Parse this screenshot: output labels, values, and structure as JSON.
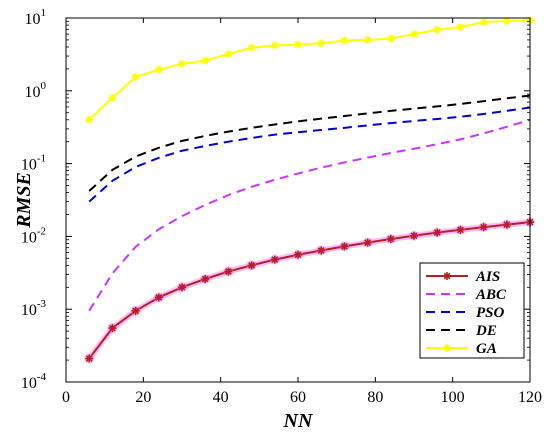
{
  "chart_data": {
    "type": "line",
    "xlabel": "NN",
    "ylabel": "RMSE",
    "xlim": [
      0,
      120
    ],
    "ylim": [
      0.0001,
      10
    ],
    "y_scale": "log",
    "grid": false,
    "legend_position": "bottom-right",
    "x_ticks": [
      "0",
      "20",
      "40",
      "60",
      "80",
      "100",
      "120"
    ],
    "y_ticks": [
      {
        "value": 0.0001,
        "base": "10",
        "exp": "-4"
      },
      {
        "value": 0.001,
        "base": "10",
        "exp": "-3"
      },
      {
        "value": 0.01,
        "base": "10",
        "exp": "-2"
      },
      {
        "value": 0.1,
        "base": "10",
        "exp": "-1"
      },
      {
        "value": 1,
        "base": "10",
        "exp": "0"
      },
      {
        "value": 10,
        "base": "10",
        "exp": "1"
      }
    ],
    "series": [
      {
        "name": "AIS",
        "color": "#b22222",
        "halo_color": "#ff66ff",
        "dash": "solid",
        "marker": "star",
        "x": [
          6,
          12,
          18,
          24,
          30,
          36,
          42,
          48,
          54,
          60,
          66,
          72,
          78,
          84,
          90,
          96,
          102,
          108,
          114,
          120
        ],
        "y": [
          0.00021,
          0.00055,
          0.00095,
          0.00145,
          0.002,
          0.0026,
          0.0033,
          0.004,
          0.0048,
          0.0056,
          0.0064,
          0.0073,
          0.0082,
          0.0092,
          0.0102,
          0.0113,
          0.0123,
          0.0134,
          0.0145,
          0.0157
        ]
      },
      {
        "name": "ABC",
        "color": "#cc33ff",
        "dash": "dashed",
        "marker": "none",
        "x": [
          6,
          12,
          18,
          24,
          30,
          36,
          42,
          48,
          54,
          60,
          66,
          72,
          78,
          84,
          90,
          96,
          102,
          108,
          114,
          120
        ],
        "y": [
          0.00095,
          0.0031,
          0.0072,
          0.0125,
          0.019,
          0.027,
          0.037,
          0.048,
          0.06,
          0.073,
          0.088,
          0.104,
          0.121,
          0.14,
          0.16,
          0.185,
          0.215,
          0.26,
          0.32,
          0.4
        ]
      },
      {
        "name": "PSO",
        "color": "#0000dd",
        "dash": "dashed",
        "marker": "none",
        "x": [
          6,
          12,
          18,
          24,
          30,
          36,
          42,
          48,
          54,
          60,
          66,
          72,
          78,
          84,
          90,
          96,
          102,
          108,
          114,
          120
        ],
        "y": [
          0.03,
          0.058,
          0.09,
          0.12,
          0.15,
          0.175,
          0.2,
          0.225,
          0.25,
          0.27,
          0.29,
          0.31,
          0.335,
          0.36,
          0.385,
          0.41,
          0.44,
          0.48,
          0.53,
          0.59
        ]
      },
      {
        "name": "DE",
        "color": "#000000",
        "dash": "dashed",
        "marker": "none",
        "x": [
          6,
          12,
          18,
          24,
          30,
          36,
          42,
          48,
          54,
          60,
          66,
          72,
          78,
          84,
          90,
          96,
          102,
          108,
          114,
          120
        ],
        "y": [
          0.042,
          0.082,
          0.125,
          0.165,
          0.205,
          0.24,
          0.275,
          0.31,
          0.345,
          0.38,
          0.415,
          0.45,
          0.49,
          0.53,
          0.57,
          0.61,
          0.66,
          0.72,
          0.79,
          0.86
        ]
      },
      {
        "name": "GA",
        "color": "#ffff00",
        "dash": "solid",
        "marker": "star",
        "x": [
          6,
          12,
          18,
          24,
          30,
          36,
          42,
          48,
          54,
          60,
          66,
          72,
          78,
          84,
          90,
          96,
          102,
          108,
          114,
          120
        ],
        "y": [
          0.4,
          0.8,
          1.55,
          1.95,
          2.35,
          2.6,
          3.2,
          3.9,
          4.2,
          4.3,
          4.5,
          4.9,
          5.0,
          5.2,
          6.0,
          6.9,
          7.5,
          8.8,
          9.1,
          9.3
        ]
      }
    ]
  }
}
